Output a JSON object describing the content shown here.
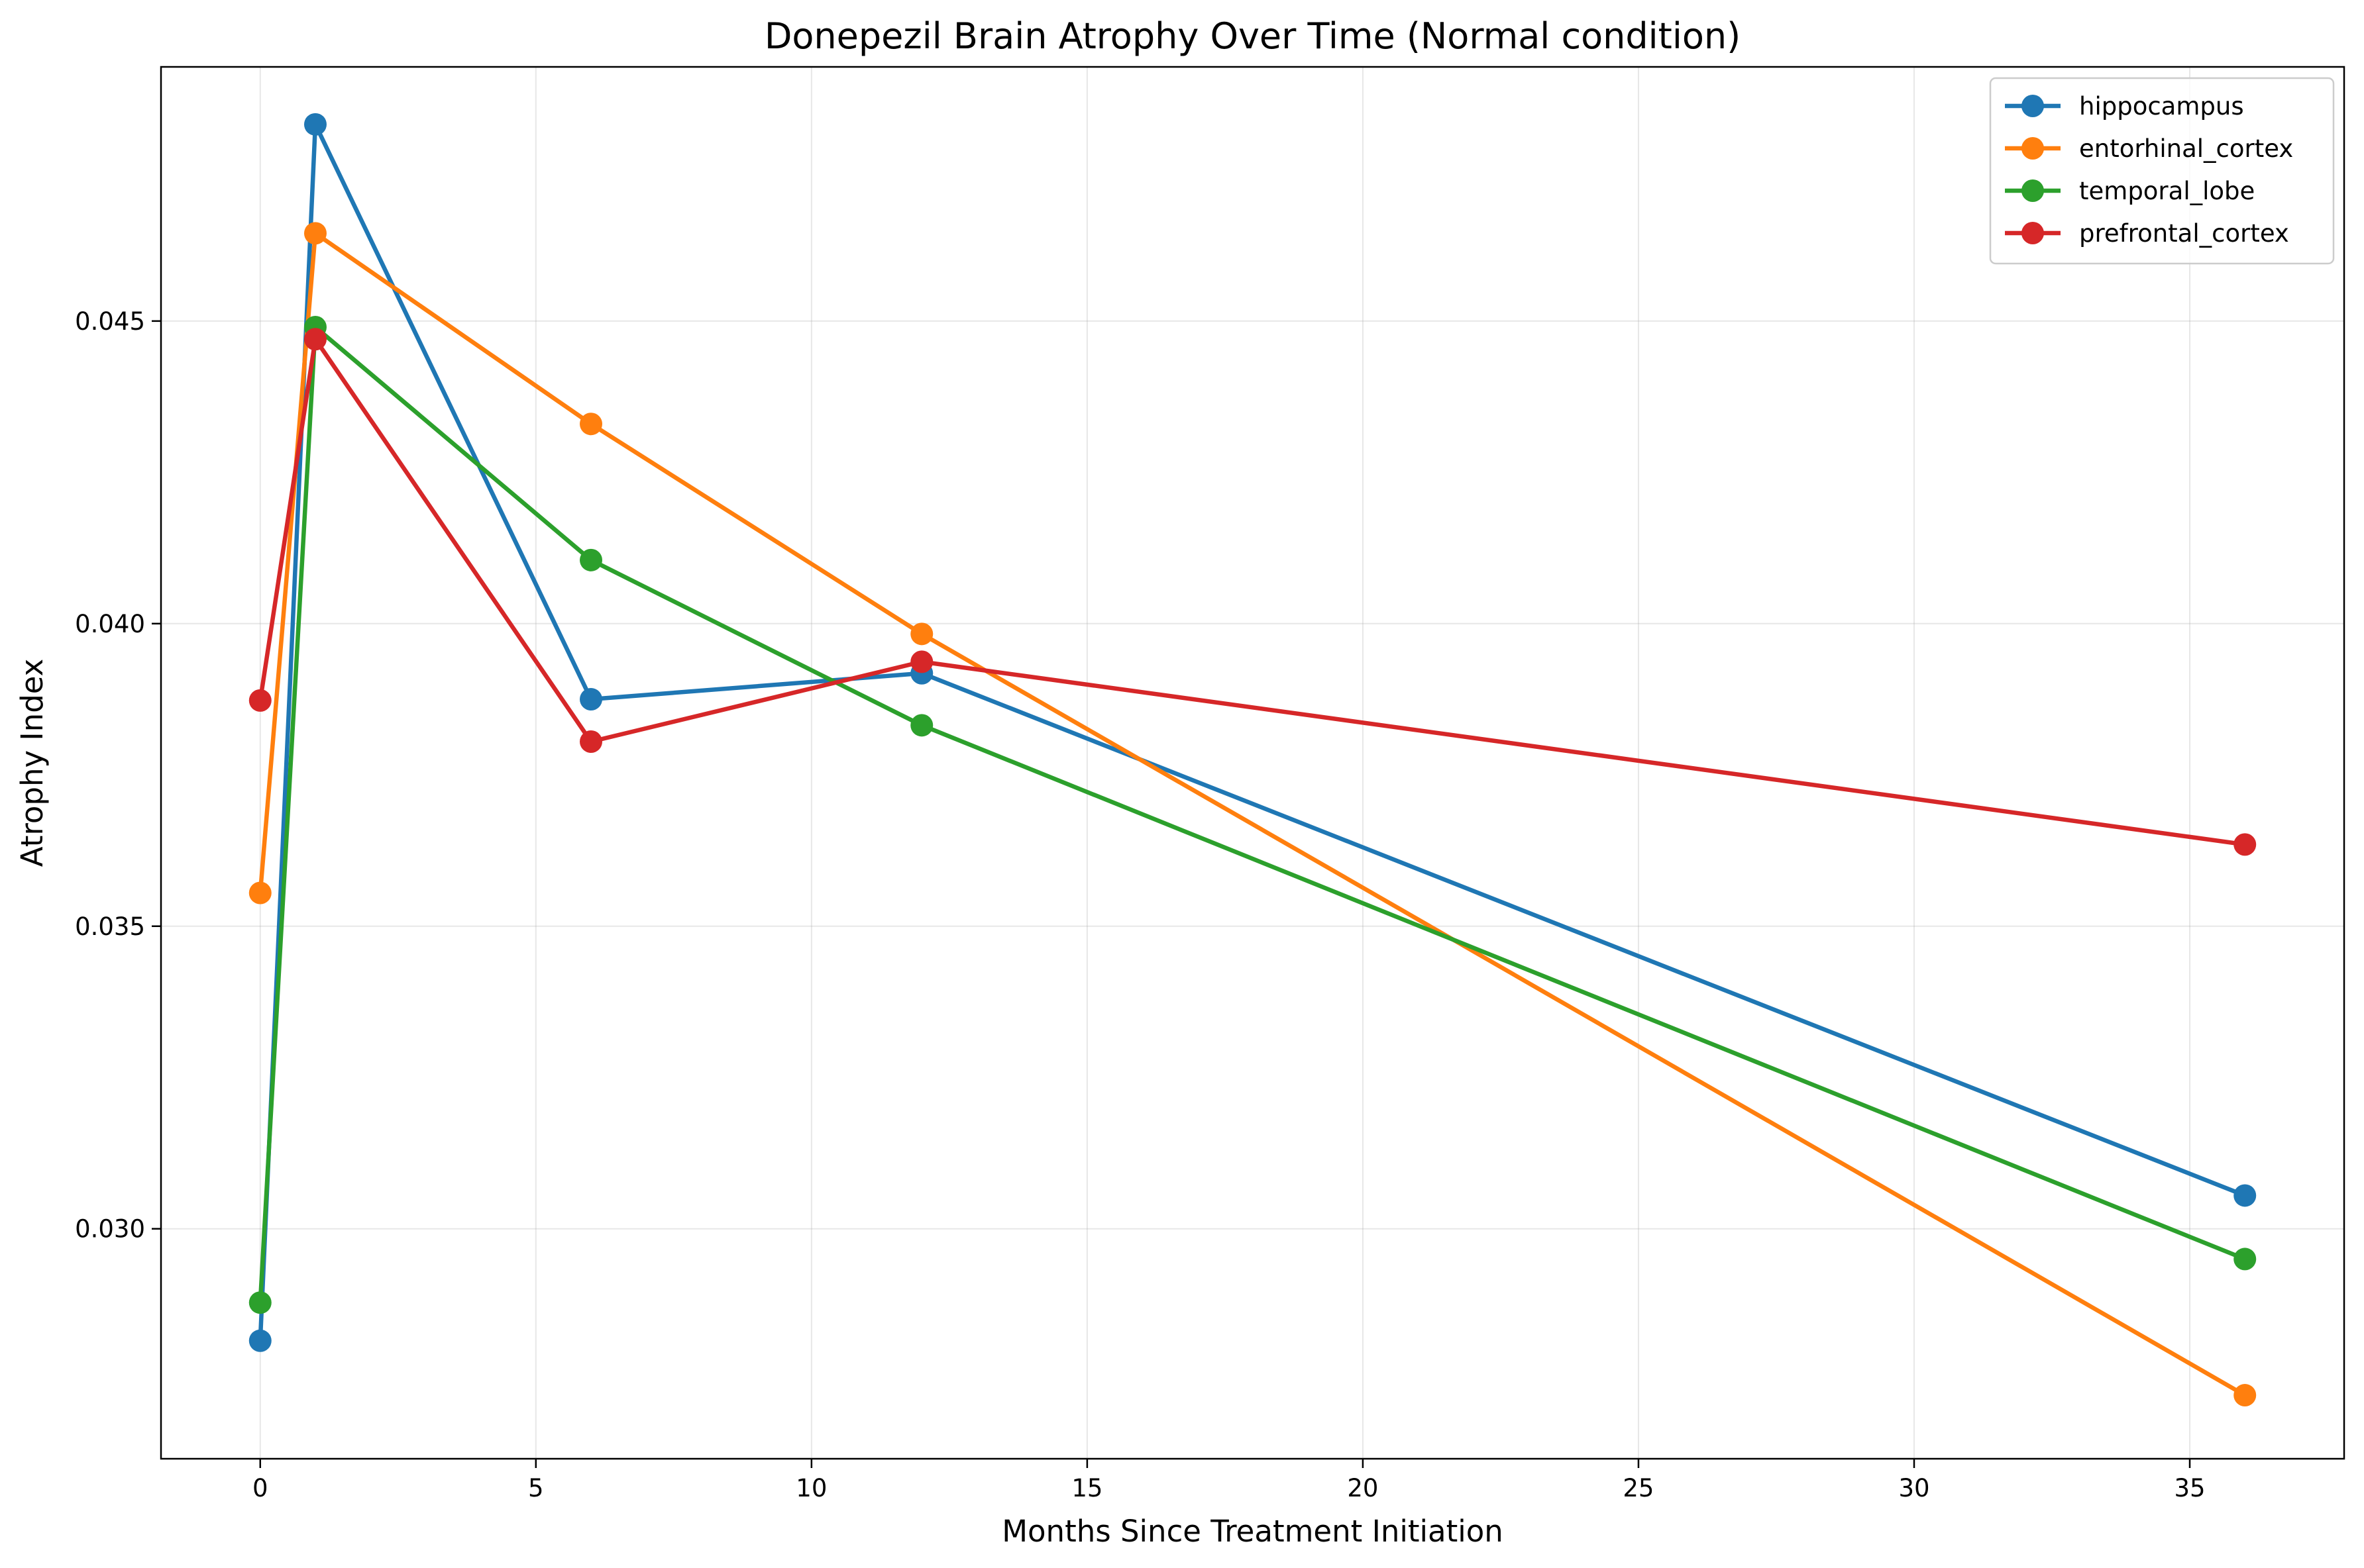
{
  "chart_data": {
    "type": "line",
    "title": "Donepezil Brain Atrophy Over Time (Normal condition)",
    "xlabel": "Months Since Treatment Initiation",
    "ylabel": "Atrophy Index",
    "xlim": [
      -1.8,
      37.8
    ],
    "ylim": [
      0.0262,
      0.0492
    ],
    "xticks": [
      0,
      5,
      10,
      15,
      20,
      25,
      30,
      35
    ],
    "xtick_labels": [
      "0",
      "5",
      "10",
      "15",
      "20",
      "25",
      "30",
      "35"
    ],
    "yticks": [
      0.03,
      0.035,
      0.04,
      0.045
    ],
    "ytick_labels": [
      "0.030",
      "0.035",
      "0.040",
      "0.045"
    ],
    "grid": true,
    "legend_position": "top-right",
    "x": [
      0,
      1,
      6,
      12,
      36
    ],
    "series": [
      {
        "name": "hippocampus",
        "color": "#1f77b4",
        "values": [
          0.02815,
          0.04825,
          0.03875,
          0.03918,
          0.03055
        ]
      },
      {
        "name": "entorhinal_cortex",
        "color": "#ff7f0e",
        "values": [
          0.03555,
          0.04645,
          0.0433,
          0.03983,
          0.02725
        ]
      },
      {
        "name": "temporal_lobe",
        "color": "#2ca02c",
        "values": [
          0.02878,
          0.0449,
          0.04105,
          0.03832,
          0.0295
        ]
      },
      {
        "name": "prefrontal_cortex",
        "color": "#d62728",
        "values": [
          0.03873,
          0.0447,
          0.03805,
          0.03937,
          0.03635
        ]
      }
    ]
  }
}
